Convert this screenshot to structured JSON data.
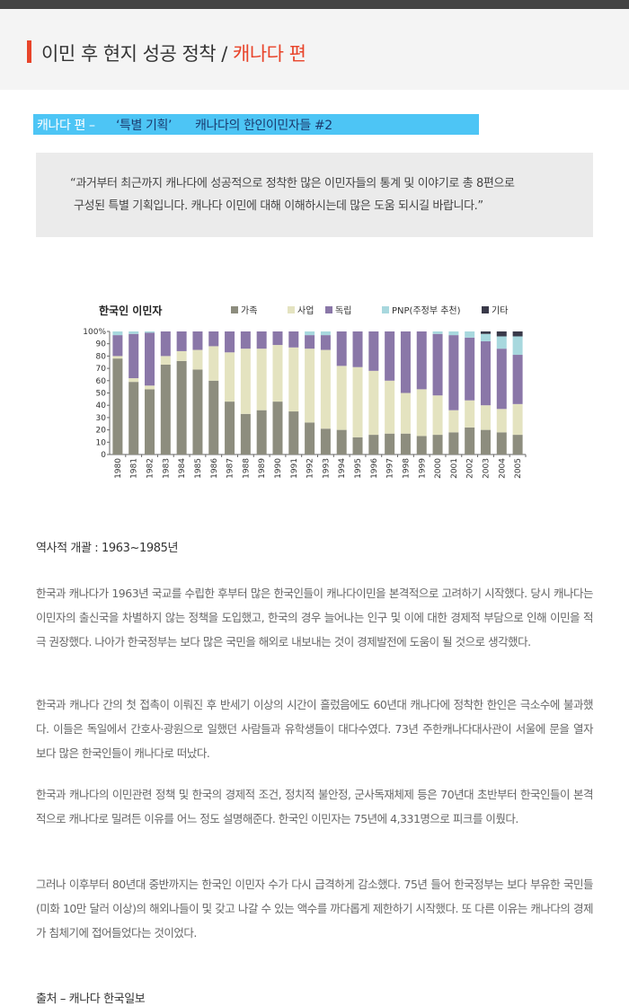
{
  "header": {
    "title_main": "이민 후 현지 성공 정착 / ",
    "title_highlight": "캐나다 편"
  },
  "banner": {
    "part1": "캐나다 편 –",
    "part2": "‘특별 기획’",
    "part3": "캐나다의 한인이민자들 #2"
  },
  "quote": {
    "line1": "“과거부터 최근까지 캐나다에 성공적으로 정착한 많은 이민자들의 통계 및 이야기로 총 8편으로",
    "line2": "구성된 특별 기획입니다. 캐나다 이민에 대해 이해하시는데 많은 도움 되시길 바랍니다.”"
  },
  "chart_data": {
    "type": "bar",
    "stacked": true,
    "title": "한국인 이민자",
    "categories": [
      "1980",
      "1981",
      "1982",
      "1983",
      "1984",
      "1985",
      "1986",
      "1987",
      "1988",
      "1989",
      "1990",
      "1991",
      "1992",
      "1993",
      "1994",
      "1995",
      "1996",
      "1997",
      "1998",
      "1999",
      "2000",
      "2001",
      "2002",
      "2003",
      "2004",
      "2005"
    ],
    "ylim": [
      0,
      100
    ],
    "yticks": [
      "0",
      "10",
      "20",
      "30",
      "40",
      "50",
      "60",
      "70",
      "80",
      "90",
      "100%"
    ],
    "legend_position": "top",
    "series": [
      {
        "name": "가족",
        "color": "#8d8d7e",
        "values": [
          78,
          59,
          53,
          73,
          76,
          69,
          60,
          43,
          33,
          36,
          43,
          35,
          26,
          21,
          20,
          14,
          16,
          17,
          17,
          15,
          16,
          18,
          22,
          20,
          18,
          16
        ]
      },
      {
        "name": "사업",
        "color": "#e4e3c0",
        "values": [
          2,
          3,
          3,
          7,
          8,
          16,
          28,
          40,
          53,
          50,
          46,
          52,
          60,
          64,
          52,
          57,
          52,
          43,
          33,
          38,
          32,
          18,
          22,
          20,
          19,
          25
        ]
      },
      {
        "name": "독립",
        "color": "#8a77a8",
        "values": [
          17,
          36,
          43,
          20,
          16,
          15,
          12,
          17,
          14,
          14,
          11,
          13,
          11,
          12,
          28,
          29,
          32,
          40,
          50,
          47,
          50,
          61,
          51,
          52,
          49,
          40
        ]
      },
      {
        "name": "PNP(주정부 추천)",
        "color": "#a8d8de",
        "values": [
          3,
          2,
          1,
          0,
          0,
          0,
          0,
          0,
          0,
          0,
          0,
          0,
          3,
          3,
          0,
          0,
          0,
          0,
          0,
          0,
          2,
          3,
          5,
          6,
          10,
          15
        ]
      },
      {
        "name": "기타",
        "color": "#3a3a4a",
        "values": [
          0,
          0,
          0,
          0,
          0,
          0,
          0,
          0,
          0,
          0,
          0,
          0,
          0,
          0,
          0,
          0,
          0,
          0,
          0,
          0,
          0,
          0,
          0,
          2,
          4,
          4
        ]
      }
    ]
  },
  "article": {
    "section_title": "역사적 개괄 : 1963~1985년",
    "p1": "한국과 캐나다가 1963년 국교를 수립한 후부터 많은 한국인들이 캐나다이민을 본격적으로 고려하기 시작했다. 당시 캐나다는 이민자의 출신국을 차별하지 않는 정책을 도입했고, 한국의 경우 늘어나는 인구 및 이에 대한 경제적 부담으로 인해 이민을 적극 권장했다. 나아가 한국정부는 보다 많은 국민을 해외로 내보내는 것이 경제발전에 도움이 될 것으로 생각했다.",
    "p2": "한국과 캐나다 간의 첫 접촉이 이뤄진 후 반세기 이상의 시간이 흘렀음에도 60년대 캐나다에 정착한 한인은 극소수에 불과했다. 이들은 독일에서 간호사·광원으로 일했던 사람들과 유학생들이 대다수였다. 73년 주한캐나다대사관이 서울에 문을 열자 보다 많은 한국인들이 캐나다로 떠났다.",
    "p3": "한국과 캐나다의 이민관련 정책 및 한국의 경제적 조건, 정치적 불안정, 군사독재체제 등은 70년대 초반부터 한국인들이 본격적으로 캐나다로 밀려든 이유를 어느 정도 설명해준다. 한국인 이민자는 75년에 4,331명으로 피크를 이뤘다.",
    "p4": "그러나 이후부터 80년대 중반까지는 한국인 이민자 수가 다시 급격하게 감소했다. 75년 들어 한국정부는 보다 부유한 국민들(미화 10만 달러 이상)의 해외나들이 및 갖고 나갈 수 있는 액수를 까다롭게 제한하기 시작했다. 또 다른 이유는 캐나다의 경제가 침체기에 접어들었다는 것이었다.",
    "source": "출처 – 캐나다 한국일보"
  }
}
